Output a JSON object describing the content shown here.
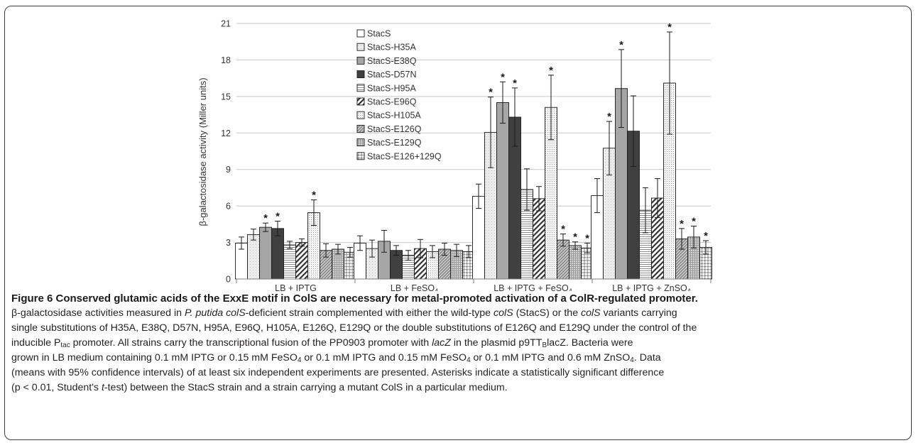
{
  "chart_data": {
    "type": "bar",
    "ylabel": "β-galactosidase activity (Miller units)",
    "xlabel": "",
    "ylim": [
      0,
      21
    ],
    "yticks": [
      0,
      3,
      6,
      9,
      12,
      15,
      18,
      21
    ],
    "grid": true,
    "legend_position": "top-left",
    "categories": [
      {
        "label": "LB + IPTG",
        "sub": ""
      },
      {
        "label": "LB + FeSO",
        "sub": "4"
      },
      {
        "label": "LB + IPTG + FeSO",
        "sub": "4"
      },
      {
        "label": "LB + IPTG + ZnSO",
        "sub": "4"
      }
    ],
    "significance_marker": "*",
    "series": [
      {
        "name": "StacS",
        "pattern": "white",
        "values": [
          2.95,
          2.95,
          6.8,
          6.85
        ],
        "err": [
          0.5,
          0.6,
          1.0,
          1.4
        ],
        "sig": [
          false,
          false,
          false,
          false
        ]
      },
      {
        "name": "StacS-H35A",
        "pattern": "lightfill",
        "values": [
          3.65,
          2.5,
          12.05,
          10.75
        ],
        "err": [
          0.45,
          0.7,
          2.9,
          2.2
        ],
        "sig": [
          false,
          false,
          true,
          true
        ]
      },
      {
        "name": "StacS-E38Q",
        "pattern": "midgray",
        "values": [
          4.25,
          3.1,
          14.5,
          15.65
        ],
        "err": [
          0.35,
          0.9,
          1.7,
          3.2
        ],
        "sig": [
          true,
          false,
          true,
          true
        ]
      },
      {
        "name": "StacS-D57N",
        "pattern": "dark",
        "values": [
          4.15,
          2.35,
          13.3,
          12.15
        ],
        "err": [
          0.6,
          0.4,
          2.4,
          2.9
        ],
        "sig": [
          true,
          false,
          true,
          false
        ]
      },
      {
        "name": "StacS-H95A",
        "pattern": "hlines",
        "values": [
          2.8,
          1.95,
          7.35,
          5.65
        ],
        "err": [
          0.3,
          0.4,
          1.7,
          1.85
        ],
        "sig": [
          false,
          false,
          false,
          false
        ]
      },
      {
        "name": "StacS-E96Q",
        "pattern": "diag",
        "values": [
          3.0,
          2.5,
          6.6,
          6.65
        ],
        "err": [
          0.3,
          0.75,
          1.0,
          1.6
        ],
        "sig": [
          false,
          false,
          false,
          false
        ]
      },
      {
        "name": "StacS-H105A",
        "pattern": "dots",
        "values": [
          5.45,
          2.25,
          14.1,
          16.1
        ],
        "err": [
          1.05,
          0.5,
          2.65,
          4.2
        ],
        "sig": [
          true,
          false,
          true,
          true
        ]
      },
      {
        "name": "StacS-E126Q",
        "pattern": "fine",
        "values": [
          2.35,
          2.45,
          3.2,
          3.3
        ],
        "err": [
          0.55,
          0.5,
          0.5,
          0.85
        ],
        "sig": [
          false,
          false,
          true,
          true
        ]
      },
      {
        "name": "StacS-E129Q",
        "pattern": "grid",
        "values": [
          2.45,
          2.35,
          2.75,
          3.45
        ],
        "err": [
          0.4,
          0.5,
          0.3,
          0.9
        ],
        "sig": [
          false,
          false,
          true,
          true
        ]
      },
      {
        "name": "StacS-E126+129Q",
        "pattern": "check",
        "values": [
          2.2,
          2.25,
          2.55,
          2.6
        ],
        "err": [
          0.4,
          0.5,
          0.4,
          0.55
        ],
        "sig": [
          false,
          false,
          true,
          true
        ]
      }
    ]
  },
  "caption": {
    "title": "Figure 6 Conserved glutamic acids of the ExxE motif in ColS are necessary for metal-promoted activation of a ColR-regulated promoter.",
    "line1": "β-galactosidase activities measured in P. putida colS-deficient strain complemented with either the wild-type colS (StacS) or the colS variants carrying",
    "line2": "single substitutions of H35A, E38Q, D57N, H95A, E96Q, H105A, E126Q, E129Q or the double substitutions of E126Q and E129Q under the control of the",
    "line3": "inducible Ptac promoter. All strains carry the transcriptional fusion of the PP0903 promoter with lacZ in the plasmid p9TTBlacZ. Bacteria were",
    "line4": "grown in LB medium containing 0.1 mM IPTG or 0.15 mM FeSO4 or 0.1 mM IPTG and 0.15 mM FeSO4 or 0.1 mM IPTG and 0.6 mM ZnSO4. Data",
    "line5": "(means with 95% confidence intervals) of at least six independent experiments are presented. Asterisks indicate a statistically significant difference",
    "line6": "(p < 0.01, Student's t-test) between the StacS strain and a strain carrying a mutant ColS in a particular medium."
  }
}
